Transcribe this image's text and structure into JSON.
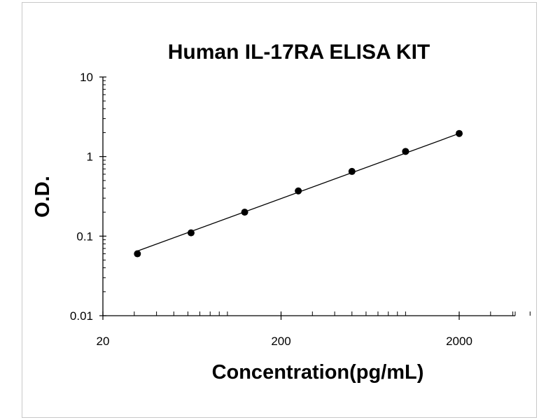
{
  "chart_data": {
    "type": "scatter",
    "title": "Human IL-17RA ELISA KIT",
    "xlabel": "Concentration(pg/mL)",
    "ylabel": "O.D.",
    "xscale": "log",
    "yscale": "log",
    "xlim": [
      20,
      5000
    ],
    "ylim": [
      0.01,
      10
    ],
    "xticks": [
      {
        "value": 20,
        "label": "20"
      },
      {
        "value": 200,
        "label": "200"
      },
      {
        "value": 2000,
        "label": "2000"
      }
    ],
    "yticks": [
      {
        "value": 10,
        "label": "10"
      },
      {
        "value": 1,
        "label": "1"
      },
      {
        "value": 0.1,
        "label": "0.1"
      },
      {
        "value": 0.01,
        "label": "0.01"
      }
    ],
    "grid": false,
    "legend": "none",
    "series": [
      {
        "x": [
          31.25,
          62.5,
          125,
          250,
          500,
          1000,
          2000
        ],
        "y": [
          0.06,
          0.11,
          0.2,
          0.37,
          0.65,
          1.16,
          1.95
        ]
      }
    ],
    "fit_line": {
      "x": [
        31.25,
        2000
      ],
      "y": [
        0.065,
        1.95
      ]
    },
    "colors": {
      "points": "#000000",
      "line": "#000000",
      "axes": "#000000",
      "frame": "#c8c8c8"
    }
  }
}
